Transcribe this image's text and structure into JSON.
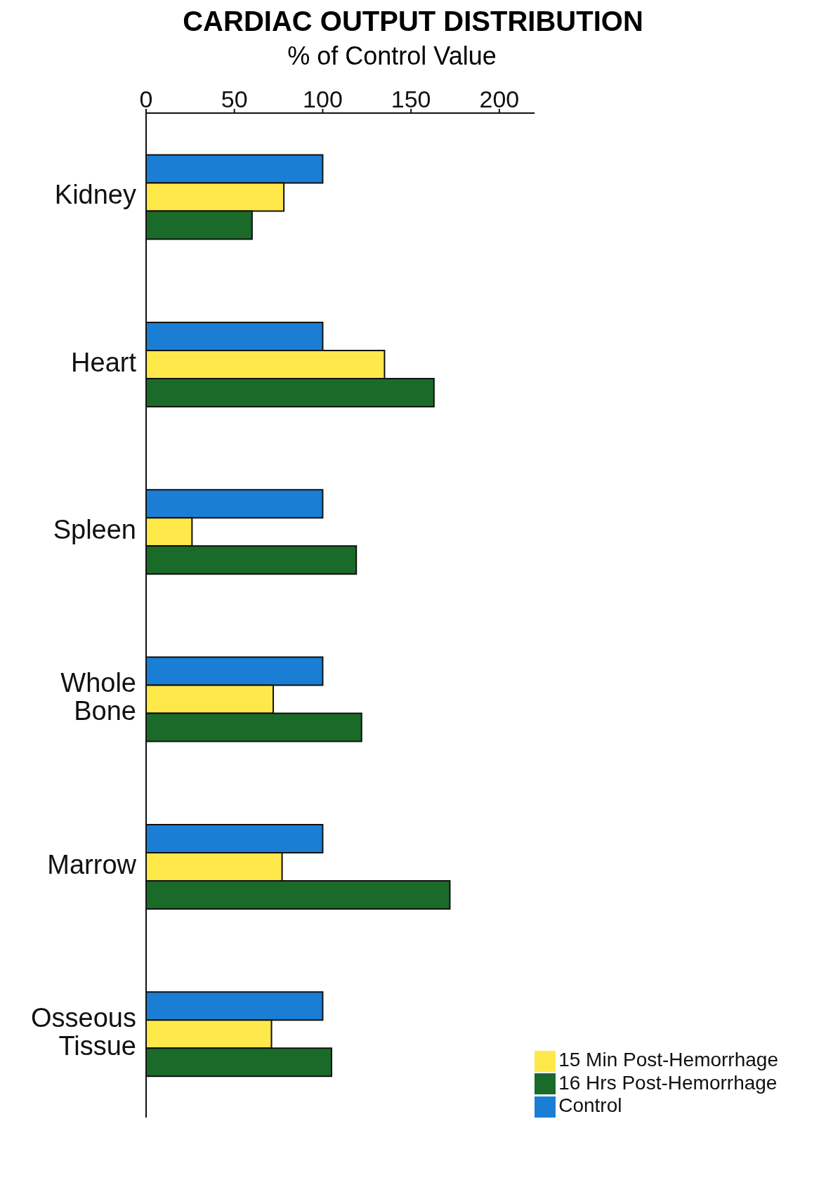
{
  "chart_data": {
    "type": "bar",
    "orientation": "horizontal",
    "title": "CARDIAC OUTPUT DISTRIBUTION",
    "xlabel": "% of Control Value",
    "categories": [
      "Kidney",
      "Heart",
      "Spleen",
      "Whole Bone",
      "Marrow",
      "Osseous Tissue"
    ],
    "series": [
      {
        "name": "Control",
        "color": "#1a7fd4",
        "values": [
          100,
          100,
          100,
          100,
          100,
          100
        ]
      },
      {
        "name": "15 Min Post-Hemorrhage",
        "color": "#ffe84a",
        "values": [
          78,
          135,
          26,
          72,
          77,
          71
        ]
      },
      {
        "name": "16 Hrs Post-Hemorrhage",
        "color": "#1a6b2a",
        "values": [
          60,
          163,
          119,
          122,
          172,
          105
        ]
      }
    ],
    "xlim": [
      0,
      220
    ],
    "xticks": [
      0,
      50,
      100,
      150,
      200
    ],
    "grid": false,
    "legend": "bottom right"
  }
}
